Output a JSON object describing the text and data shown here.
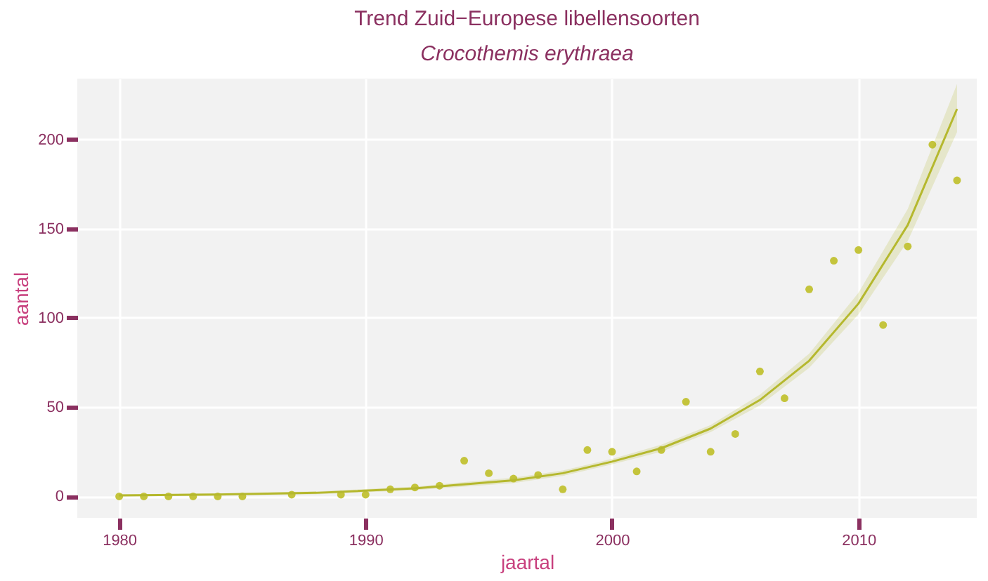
{
  "chart_data": {
    "type": "scatter",
    "title": "Trend Zuid−Europese libellensoorten",
    "subtitle": "Crocothemis erythraea",
    "xlabel": "jaartal",
    "ylabel": "aantal",
    "xlim": [
      1978.3,
      2014.8
    ],
    "ylim": [
      -12,
      234
    ],
    "xticks": [
      1980,
      1990,
      2000,
      2010
    ],
    "yticks": [
      0,
      50,
      100,
      150,
      200
    ],
    "grid": true,
    "series": [
      {
        "color": "#c4c43c",
        "marker": "circle",
        "x": [
          1980,
          1981,
          1982,
          1983,
          1984,
          1985,
          1987,
          1989,
          1990,
          1991,
          1992,
          1993,
          1994,
          1995,
          1996,
          1997,
          1998,
          1999,
          2000,
          2001,
          2002,
          2003,
          2004,
          2005,
          2006,
          2007,
          2008,
          2009,
          2010,
          2011,
          2012,
          2013,
          2014
        ],
        "values": [
          0,
          0,
          0,
          0,
          0,
          0,
          1,
          1,
          1,
          4,
          5,
          6,
          20,
          13,
          10,
          12,
          4,
          26,
          25,
          14,
          26,
          53,
          25,
          35,
          70,
          55,
          116,
          132,
          138,
          96,
          140,
          197,
          177
        ]
      },
      {
        "type": "line",
        "color": "#b5b82e",
        "line_style": "solid",
        "marker": "none",
        "x": [
          1980,
          1984,
          1988,
          1992,
          1996,
          1998,
          2000,
          2002,
          2004,
          2006,
          2008,
          2010,
          2012,
          2014
        ],
        "values": [
          0.6,
          1.1,
          2,
          4.5,
          9,
          13,
          19.5,
          27,
          38,
          54,
          76,
          108,
          152,
          217
        ],
        "lower": [
          0,
          0.4,
          1.2,
          3.5,
          7.5,
          11.5,
          18,
          25,
          36,
          51,
          72,
          102,
          143,
          204
        ],
        "upper": [
          1.2,
          1.8,
          2.8,
          5.5,
          10.5,
          14.5,
          21,
          29,
          40,
          57,
          80,
          114,
          161,
          231
        ]
      }
    ]
  }
}
